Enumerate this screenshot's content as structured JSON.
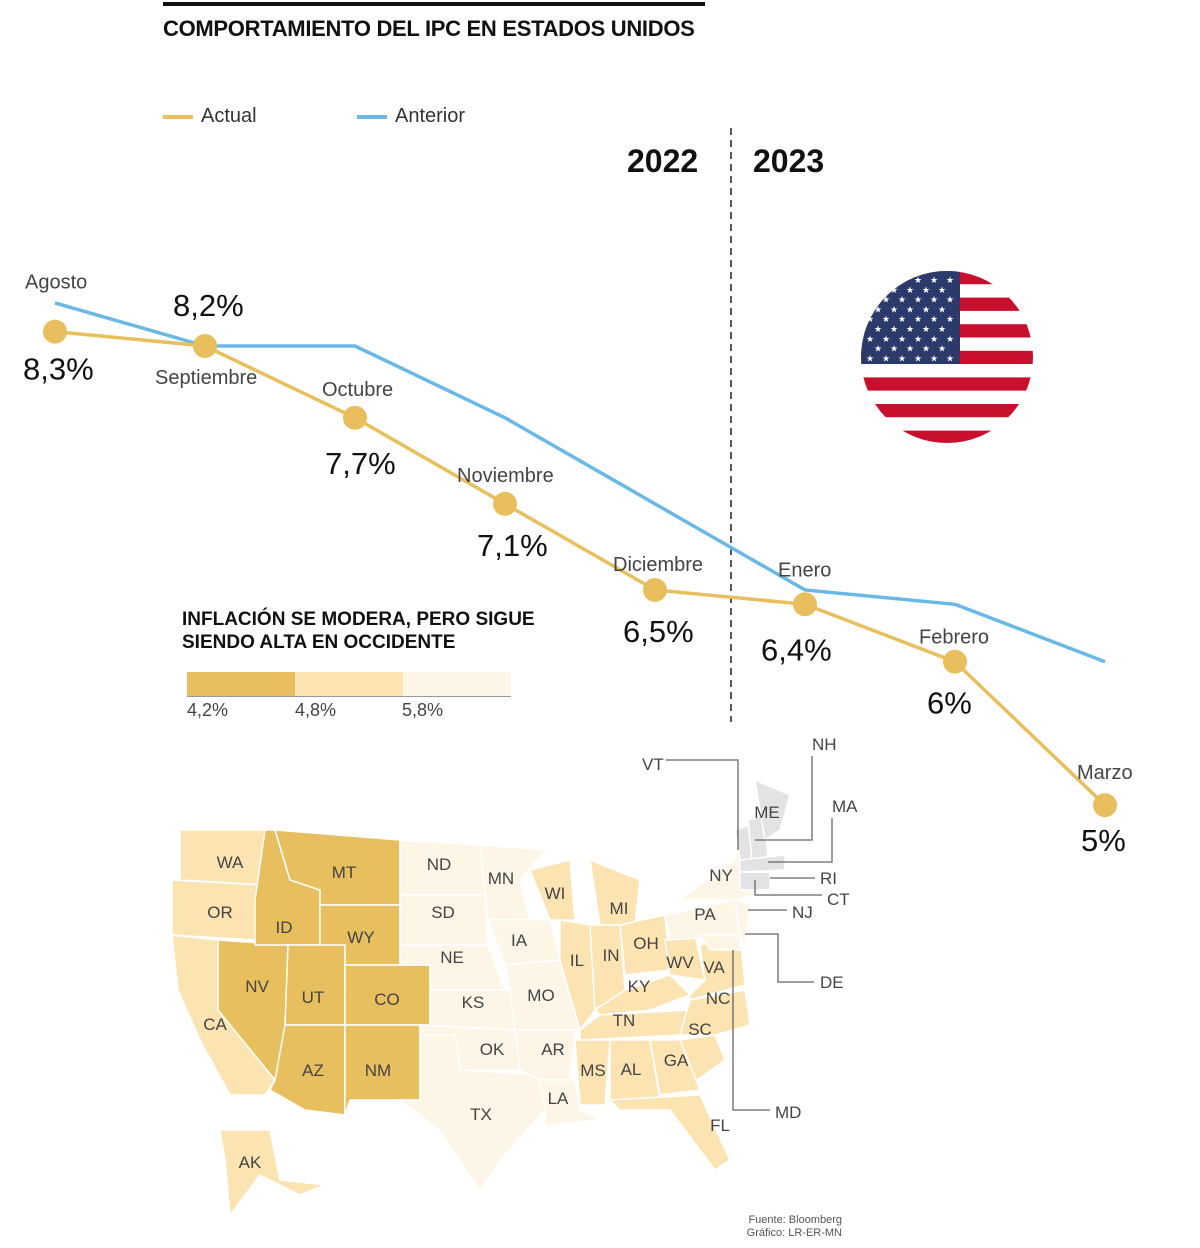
{
  "title": "COMPORTAMIENTO DEL IPC EN ESTADOS UNIDOS",
  "colors": {
    "actual": "#e8bf5c",
    "anterior": "#6ab8e6",
    "map_dark": "#e7bf5e",
    "map_mid": "#fbe3b2",
    "map_light": "#fdf5e6",
    "map_nodata": "#e3e3e5"
  },
  "chart_data": {
    "type": "line",
    "title": "COMPORTAMIENTO DEL IPC EN ESTADOS UNIDOS",
    "categories": [
      "Agosto",
      "Septiembre",
      "Octubre",
      "Noviembre",
      "Diciembre",
      "Enero",
      "Febrero",
      "Marzo"
    ],
    "series": [
      {
        "name": "Actual",
        "values": [
          8.3,
          8.2,
          7.7,
          7.1,
          6.5,
          6.4,
          6.0,
          5.0
        ],
        "labels": [
          "8,3%",
          "8,2%",
          "7,7%",
          "7,1%",
          "6,5%",
          "6,4%",
          "6%",
          "5%"
        ]
      },
      {
        "name": "Anterior",
        "values": [
          8.5,
          8.2,
          8.2,
          7.7,
          7.1,
          6.5,
          6.4,
          6.0
        ]
      }
    ],
    "year_divider": {
      "left": "2022",
      "right": "2023"
    },
    "ylim": [
      4.8,
      8.6
    ],
    "grid": false,
    "legend_placement": "top-left"
  },
  "map": {
    "title": "INFLACIÓN SE MODERA, PERO SIGUE SIENDO ALTA EN OCCIDENTE",
    "scale_labels": [
      "4,2%",
      "4,8%",
      "5,8%"
    ],
    "callouts": [
      "VT",
      "NH",
      "MA",
      "RI",
      "CT",
      "NJ",
      "DE",
      "MD"
    ]
  },
  "source": "Fuente: Bloomberg",
  "credit": "Gráfico: LR-ER-MN"
}
